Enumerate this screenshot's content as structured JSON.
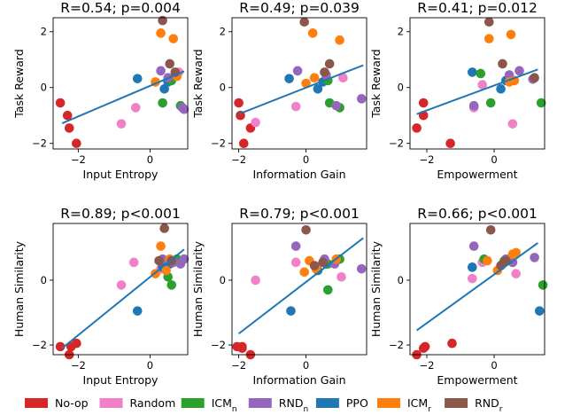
{
  "method_colors": {
    "No-op": "#d62728",
    "Random": "#f080c8",
    "ICM_n": "#2ca02c",
    "RND_n": "#9467bd",
    "PPO": "#1f77b4",
    "ICM_r": "#ff7f0e",
    "RND_r": "#8c564b"
  },
  "fit_line_color": "#1f77b4",
  "legend": [
    {
      "key": "No-op",
      "base": "No-op",
      "sub": ""
    },
    {
      "key": "Random",
      "base": "Random",
      "sub": ""
    },
    {
      "key": "ICM_n",
      "base": "ICM",
      "sub": "n"
    },
    {
      "key": "RND_n",
      "base": "RND",
      "sub": "n"
    },
    {
      "key": "PPO",
      "base": "PPO",
      "sub": ""
    },
    {
      "key": "ICM_r",
      "base": "ICM",
      "sub": "r"
    },
    {
      "key": "RND_r",
      "base": "RND",
      "sub": "r"
    }
  ],
  "chart_data": [
    {
      "type": "scatter",
      "title": "R=0.54; p=0.004",
      "xlabel": "Input Entropy",
      "ylabel": "Task Reward",
      "xlim": [
        -2.7,
        1.05
      ],
      "ylim": [
        -2.2,
        2.5
      ],
      "xticks": [
        {
          "v": -2,
          "t": "−2"
        },
        {
          "v": 0,
          "t": "0"
        }
      ],
      "yticks": [
        {
          "v": -2,
          "t": "−2"
        },
        {
          "v": 0,
          "t": "0"
        },
        {
          "v": 2,
          "t": "2"
        }
      ],
      "fit": [
        [
          -2.45,
          -1.28
        ],
        [
          0.95,
          0.58
        ]
      ],
      "points": [
        {
          "m": "No-op",
          "x": -2.5,
          "y": -0.55
        },
        {
          "m": "No-op",
          "x": -2.3,
          "y": -1.0
        },
        {
          "m": "No-op",
          "x": -2.25,
          "y": -1.45
        },
        {
          "m": "No-op",
          "x": -2.05,
          "y": -2.0
        },
        {
          "m": "Random",
          "x": -0.8,
          "y": -1.3
        },
        {
          "m": "Random",
          "x": -0.4,
          "y": -0.72
        },
        {
          "m": "Random",
          "x": 0.8,
          "y": 0.55
        },
        {
          "m": "PPO",
          "x": -0.35,
          "y": 0.32
        },
        {
          "m": "PPO",
          "x": 0.4,
          "y": -0.05
        },
        {
          "m": "PPO",
          "x": 0.5,
          "y": 0.2
        },
        {
          "m": "ICM_n",
          "x": 0.35,
          "y": -0.55
        },
        {
          "m": "ICM_n",
          "x": 0.6,
          "y": 0.25
        },
        {
          "m": "ICM_n",
          "x": 0.85,
          "y": -0.65
        },
        {
          "m": "RND_n",
          "x": 0.3,
          "y": 0.6
        },
        {
          "m": "RND_n",
          "x": 0.5,
          "y": 0.35
        },
        {
          "m": "RND_n",
          "x": 0.9,
          "y": -0.72
        },
        {
          "m": "RND_n",
          "x": 0.95,
          "y": -0.78
        },
        {
          "m": "ICM_r",
          "x": 0.15,
          "y": 0.2
        },
        {
          "m": "ICM_r",
          "x": 0.3,
          "y": 1.95
        },
        {
          "m": "ICM_r",
          "x": 0.65,
          "y": 1.75
        },
        {
          "m": "ICM_r",
          "x": 0.75,
          "y": 0.4
        },
        {
          "m": "RND_r",
          "x": 0.35,
          "y": 2.4
        },
        {
          "m": "RND_r",
          "x": 0.55,
          "y": 0.85
        },
        {
          "m": "RND_r",
          "x": 0.7,
          "y": 0.55
        }
      ]
    },
    {
      "type": "scatter",
      "title": "R=0.49; p=0.039",
      "xlabel": "Information Gain",
      "ylabel": "Task Reward",
      "xlim": [
        -2.2,
        1.8
      ],
      "ylim": [
        -2.2,
        2.5
      ],
      "xticks": [
        {
          "v": -2,
          "t": "−2"
        },
        {
          "v": 0,
          "t": "0"
        }
      ],
      "yticks": [
        {
          "v": -2,
          "t": "−2"
        },
        {
          "v": 0,
          "t": "0"
        },
        {
          "v": 2,
          "t": "2"
        }
      ],
      "fit": [
        [
          -2.0,
          -0.95
        ],
        [
          1.7,
          0.8
        ]
      ],
      "points": [
        {
          "m": "No-op",
          "x": -2.0,
          "y": -0.55
        },
        {
          "m": "No-op",
          "x": -1.95,
          "y": -1.0
        },
        {
          "m": "No-op",
          "x": -1.65,
          "y": -1.45
        },
        {
          "m": "No-op",
          "x": -1.85,
          "y": -2.0
        },
        {
          "m": "Random",
          "x": -1.5,
          "y": -1.25
        },
        {
          "m": "Random",
          "x": -0.3,
          "y": -0.68
        },
        {
          "m": "Random",
          "x": 1.1,
          "y": 0.35
        },
        {
          "m": "PPO",
          "x": -0.5,
          "y": 0.32
        },
        {
          "m": "PPO",
          "x": 0.35,
          "y": -0.05
        },
        {
          "m": "PPO",
          "x": 0.5,
          "y": 0.2
        },
        {
          "m": "ICM_n",
          "x": 0.7,
          "y": -0.55
        },
        {
          "m": "ICM_n",
          "x": 0.65,
          "y": 0.25
        },
        {
          "m": "ICM_n",
          "x": 1.0,
          "y": -0.72
        },
        {
          "m": "RND_n",
          "x": -0.25,
          "y": 0.6
        },
        {
          "m": "RND_n",
          "x": 0.6,
          "y": 0.45
        },
        {
          "m": "RND_n",
          "x": 0.9,
          "y": -0.65
        },
        {
          "m": "RND_n",
          "x": 1.65,
          "y": -0.4
        },
        {
          "m": "ICM_r",
          "x": 0.0,
          "y": 0.15
        },
        {
          "m": "ICM_r",
          "x": 0.2,
          "y": 1.95
        },
        {
          "m": "ICM_r",
          "x": 1.0,
          "y": 1.7
        },
        {
          "m": "ICM_r",
          "x": 0.25,
          "y": 0.35
        },
        {
          "m": "RND_r",
          "x": -0.05,
          "y": 2.35
        },
        {
          "m": "RND_r",
          "x": 0.7,
          "y": 0.85
        },
        {
          "m": "RND_r",
          "x": 0.55,
          "y": 0.55
        }
      ]
    },
    {
      "type": "scatter",
      "title": "R=0.41; p=0.012",
      "xlabel": "Empowerment",
      "ylabel": "Task Reward",
      "xlim": [
        -2.5,
        1.5
      ],
      "ylim": [
        -2.2,
        2.5
      ],
      "xticks": [
        {
          "v": -2,
          "t": "−2"
        },
        {
          "v": 0,
          "t": "0"
        }
      ],
      "yticks": [
        {
          "v": -2,
          "t": "−2"
        },
        {
          "v": 0,
          "t": "0"
        },
        {
          "v": 2,
          "t": "2"
        }
      ],
      "fit": [
        [
          -2.3,
          -0.95
        ],
        [
          1.3,
          0.65
        ]
      ],
      "points": [
        {
          "m": "No-op",
          "x": -2.3,
          "y": -1.45
        },
        {
          "m": "No-op",
          "x": -2.1,
          "y": -0.55
        },
        {
          "m": "No-op",
          "x": -2.1,
          "y": -1.0
        },
        {
          "m": "No-op",
          "x": -1.3,
          "y": -2.0
        },
        {
          "m": "Random",
          "x": -0.6,
          "y": -0.72
        },
        {
          "m": "Random",
          "x": -0.35,
          "y": 0.1
        },
        {
          "m": "Random",
          "x": 0.55,
          "y": -1.3
        },
        {
          "m": "PPO",
          "x": -0.65,
          "y": 0.55
        },
        {
          "m": "PPO",
          "x": 0.2,
          "y": -0.05
        },
        {
          "m": "PPO",
          "x": 0.35,
          "y": 0.25
        },
        {
          "m": "ICM_n",
          "x": -0.4,
          "y": 0.5
        },
        {
          "m": "ICM_n",
          "x": -0.1,
          "y": -0.55
        },
        {
          "m": "ICM_n",
          "x": 1.4,
          "y": -0.55
        },
        {
          "m": "RND_n",
          "x": -0.6,
          "y": -0.65
        },
        {
          "m": "RND_n",
          "x": 0.45,
          "y": 0.45
        },
        {
          "m": "RND_n",
          "x": 0.75,
          "y": 0.6
        },
        {
          "m": "RND_n",
          "x": 1.15,
          "y": 0.3
        },
        {
          "m": "ICM_r",
          "x": -0.15,
          "y": 1.75
        },
        {
          "m": "ICM_r",
          "x": 0.5,
          "y": 1.9
        },
        {
          "m": "ICM_r",
          "x": 0.45,
          "y": 0.2
        },
        {
          "m": "ICM_r",
          "x": 0.6,
          "y": 0.25
        },
        {
          "m": "RND_r",
          "x": -0.15,
          "y": 2.35
        },
        {
          "m": "RND_r",
          "x": 0.25,
          "y": 0.85
        },
        {
          "m": "RND_r",
          "x": 1.2,
          "y": 0.35
        }
      ]
    },
    {
      "type": "scatter",
      "title": "R=0.89; p<0.001",
      "xlabel": "Input Entropy",
      "ylabel": "Human Similarity",
      "xlim": [
        -2.7,
        1.05
      ],
      "ylim": [
        -2.3,
        1.75
      ],
      "xticks": [
        {
          "v": -2,
          "t": "−2"
        },
        {
          "v": 0,
          "t": "0"
        }
      ],
      "yticks": [
        {
          "v": -2,
          "t": "−2"
        },
        {
          "v": 0,
          "t": "0"
        }
      ],
      "fit": [
        [
          -2.45,
          -2.1
        ],
        [
          0.95,
          0.95
        ]
      ],
      "points": [
        {
          "m": "No-op",
          "x": -2.5,
          "y": -2.05
        },
        {
          "m": "No-op",
          "x": -2.25,
          "y": -2.3
        },
        {
          "m": "No-op",
          "x": -2.2,
          "y": -2.05
        },
        {
          "m": "No-op",
          "x": -2.05,
          "y": -1.95
        },
        {
          "m": "Random",
          "x": -0.8,
          "y": -0.15
        },
        {
          "m": "Random",
          "x": -0.45,
          "y": 0.55
        },
        {
          "m": "Random",
          "x": 0.3,
          "y": 0.35
        },
        {
          "m": "PPO",
          "x": -0.35,
          "y": -0.95
        },
        {
          "m": "PPO",
          "x": 0.35,
          "y": 0.4
        },
        {
          "m": "PPO",
          "x": 0.55,
          "y": 0.5
        },
        {
          "m": "ICM_n",
          "x": 0.5,
          "y": 0.1
        },
        {
          "m": "ICM_n",
          "x": 0.6,
          "y": -0.15
        },
        {
          "m": "ICM_n",
          "x": 0.75,
          "y": 0.65
        },
        {
          "m": "RND_n",
          "x": 0.35,
          "y": 0.65
        },
        {
          "m": "RND_n",
          "x": 0.65,
          "y": 0.55
        },
        {
          "m": "RND_n",
          "x": 0.85,
          "y": 0.5
        },
        {
          "m": "RND_n",
          "x": 0.95,
          "y": 0.65
        },
        {
          "m": "ICM_r",
          "x": 0.15,
          "y": 0.2
        },
        {
          "m": "ICM_r",
          "x": 0.3,
          "y": 1.05
        },
        {
          "m": "ICM_r",
          "x": 0.45,
          "y": 0.3
        },
        {
          "m": "ICM_r",
          "x": 0.55,
          "y": 0.65
        },
        {
          "m": "RND_r",
          "x": 0.4,
          "y": 1.6
        },
        {
          "m": "RND_r",
          "x": 0.25,
          "y": 0.6
        },
        {
          "m": "RND_r",
          "x": 0.6,
          "y": 0.6
        }
      ]
    },
    {
      "type": "scatter",
      "title": "R=0.79; p<0.001",
      "xlabel": "Information Gain",
      "ylabel": "Human Similarity",
      "xlim": [
        -2.2,
        1.8
      ],
      "ylim": [
        -2.3,
        1.75
      ],
      "xticks": [
        {
          "v": -2,
          "t": "−2"
        },
        {
          "v": 0,
          "t": "0"
        }
      ],
      "yticks": [
        {
          "v": -2,
          "t": "−2"
        },
        {
          "v": 0,
          "t": "0"
        }
      ],
      "fit": [
        [
          -2.0,
          -1.65
        ],
        [
          1.7,
          1.3
        ]
      ],
      "points": [
        {
          "m": "No-op",
          "x": -2.05,
          "y": -2.05
        },
        {
          "m": "No-op",
          "x": -1.9,
          "y": -2.1
        },
        {
          "m": "No-op",
          "x": -1.9,
          "y": -2.05
        },
        {
          "m": "No-op",
          "x": -1.65,
          "y": -2.3
        },
        {
          "m": "Random",
          "x": -1.5,
          "y": 0.0
        },
        {
          "m": "Random",
          "x": -0.3,
          "y": 0.55
        },
        {
          "m": "Random",
          "x": 1.05,
          "y": 0.1
        },
        {
          "m": "PPO",
          "x": -0.45,
          "y": -0.95
        },
        {
          "m": "PPO",
          "x": 0.35,
          "y": 0.3
        },
        {
          "m": "PPO",
          "x": 0.6,
          "y": 0.5
        },
        {
          "m": "ICM_n",
          "x": 0.65,
          "y": 0.5
        },
        {
          "m": "ICM_n",
          "x": 0.65,
          "y": -0.3
        },
        {
          "m": "ICM_n",
          "x": 1.0,
          "y": 0.65
        },
        {
          "m": "RND_n",
          "x": -0.3,
          "y": 1.05
        },
        {
          "m": "RND_n",
          "x": 0.55,
          "y": 0.65
        },
        {
          "m": "RND_n",
          "x": 0.85,
          "y": 0.5
        },
        {
          "m": "RND_n",
          "x": 1.65,
          "y": 0.35
        },
        {
          "m": "ICM_r",
          "x": -0.05,
          "y": 0.25
        },
        {
          "m": "ICM_r",
          "x": 0.1,
          "y": 0.6
        },
        {
          "m": "ICM_r",
          "x": 0.3,
          "y": 0.35
        },
        {
          "m": "ICM_r",
          "x": 0.9,
          "y": 0.65
        },
        {
          "m": "RND_r",
          "x": 0.0,
          "y": 1.55
        },
        {
          "m": "RND_r",
          "x": 0.25,
          "y": 0.45
        },
        {
          "m": "RND_r",
          "x": 0.5,
          "y": 0.55
        }
      ]
    },
    {
      "type": "scatter",
      "title": "R=0.66; p<0.001",
      "xlabel": "Empowerment",
      "ylabel": "Human Similarity",
      "xlim": [
        -2.5,
        1.5
      ],
      "ylim": [
        -2.3,
        1.75
      ],
      "xticks": [
        {
          "v": -2,
          "t": "−2"
        },
        {
          "v": 0,
          "t": "0"
        }
      ],
      "yticks": [
        {
          "v": -2,
          "t": "−2"
        },
        {
          "v": 0,
          "t": "0"
        }
      ],
      "fit": [
        [
          -2.3,
          -1.55
        ],
        [
          1.3,
          1.15
        ]
      ],
      "points": [
        {
          "m": "No-op",
          "x": -2.3,
          "y": -2.3
        },
        {
          "m": "No-op",
          "x": -2.05,
          "y": -2.05
        },
        {
          "m": "No-op",
          "x": -2.1,
          "y": -2.1
        },
        {
          "m": "No-op",
          "x": -1.25,
          "y": -1.95
        },
        {
          "m": "Random",
          "x": -0.65,
          "y": 0.05
        },
        {
          "m": "Random",
          "x": -0.35,
          "y": 0.55
        },
        {
          "m": "Random",
          "x": 0.65,
          "y": 0.2
        },
        {
          "m": "PPO",
          "x": -0.65,
          "y": 0.4
        },
        {
          "m": "PPO",
          "x": 0.25,
          "y": 0.5
        },
        {
          "m": "PPO",
          "x": 1.35,
          "y": -0.95
        },
        {
          "m": "ICM_n",
          "x": -0.3,
          "y": 0.65
        },
        {
          "m": "ICM_n",
          "x": 0.3,
          "y": 0.6
        },
        {
          "m": "ICM_n",
          "x": 1.45,
          "y": -0.15
        },
        {
          "m": "RND_n",
          "x": -0.6,
          "y": 1.05
        },
        {
          "m": "RND_n",
          "x": 0.35,
          "y": 0.65
        },
        {
          "m": "RND_n",
          "x": 0.55,
          "y": 0.55
        },
        {
          "m": "RND_n",
          "x": 1.2,
          "y": 0.7
        },
        {
          "m": "ICM_r",
          "x": -0.2,
          "y": 0.6
        },
        {
          "m": "ICM_r",
          "x": 0.1,
          "y": 0.3
        },
        {
          "m": "ICM_r",
          "x": 0.55,
          "y": 0.8
        },
        {
          "m": "ICM_r",
          "x": 0.65,
          "y": 0.85
        },
        {
          "m": "RND_r",
          "x": -0.1,
          "y": 1.55
        },
        {
          "m": "RND_r",
          "x": 0.2,
          "y": 0.45
        },
        {
          "m": "RND_r",
          "x": 0.35,
          "y": 0.6
        }
      ]
    }
  ]
}
